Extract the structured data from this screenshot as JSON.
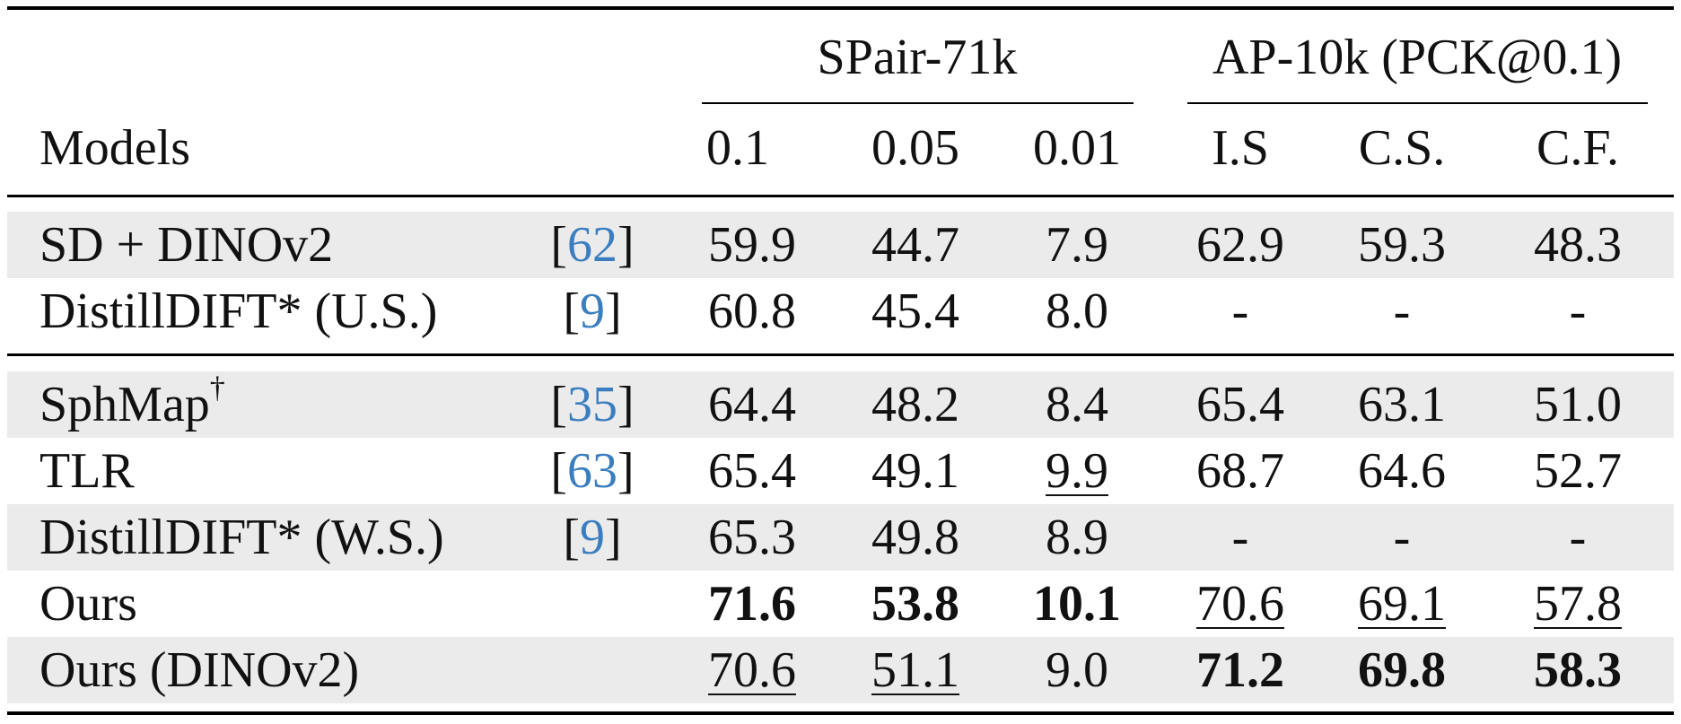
{
  "table": {
    "group_headers": {
      "spair": "SPair-71k",
      "ap10k": "AP-10k (PCK@0.1)"
    },
    "col_headers": {
      "models": "Models",
      "c1": "0.1",
      "c2": "0.05",
      "c3": "0.01",
      "c4": "I.S",
      "c5": "C.S.",
      "c6": "C.F."
    },
    "rows": [
      {
        "model": "SD + DINOv2",
        "ref": "62",
        "values": [
          "59.9",
          "44.7",
          "7.9",
          "62.9",
          "59.3",
          "48.3"
        ]
      },
      {
        "model": "DistillDIFT* (U.S.)",
        "ref": "9",
        "values": [
          "60.8",
          "45.4",
          "8.0",
          "-",
          "-",
          "-"
        ]
      },
      {
        "model": "SphMap",
        "model_sup": "†",
        "ref": "35",
        "values": [
          "64.4",
          "48.2",
          "8.4",
          "65.4",
          "63.1",
          "51.0"
        ]
      },
      {
        "model": "TLR",
        "ref": "63",
        "values": [
          "65.4",
          "49.1",
          "9.9",
          "68.7",
          "64.6",
          "52.7"
        ]
      },
      {
        "model": "DistillDIFT* (W.S.)",
        "ref": "9",
        "values": [
          "65.3",
          "49.8",
          "8.9",
          "-",
          "-",
          "-"
        ]
      },
      {
        "model": "Ours",
        "values": [
          "71.6",
          "53.8",
          "10.1",
          "70.6",
          "69.1",
          "57.8"
        ]
      },
      {
        "model": "Ours (DINOv2)",
        "values": [
          "70.6",
          "51.1",
          "9.0",
          "71.2",
          "69.8",
          "58.3"
        ]
      }
    ],
    "bracket_open": "[",
    "bracket_close": "]"
  }
}
